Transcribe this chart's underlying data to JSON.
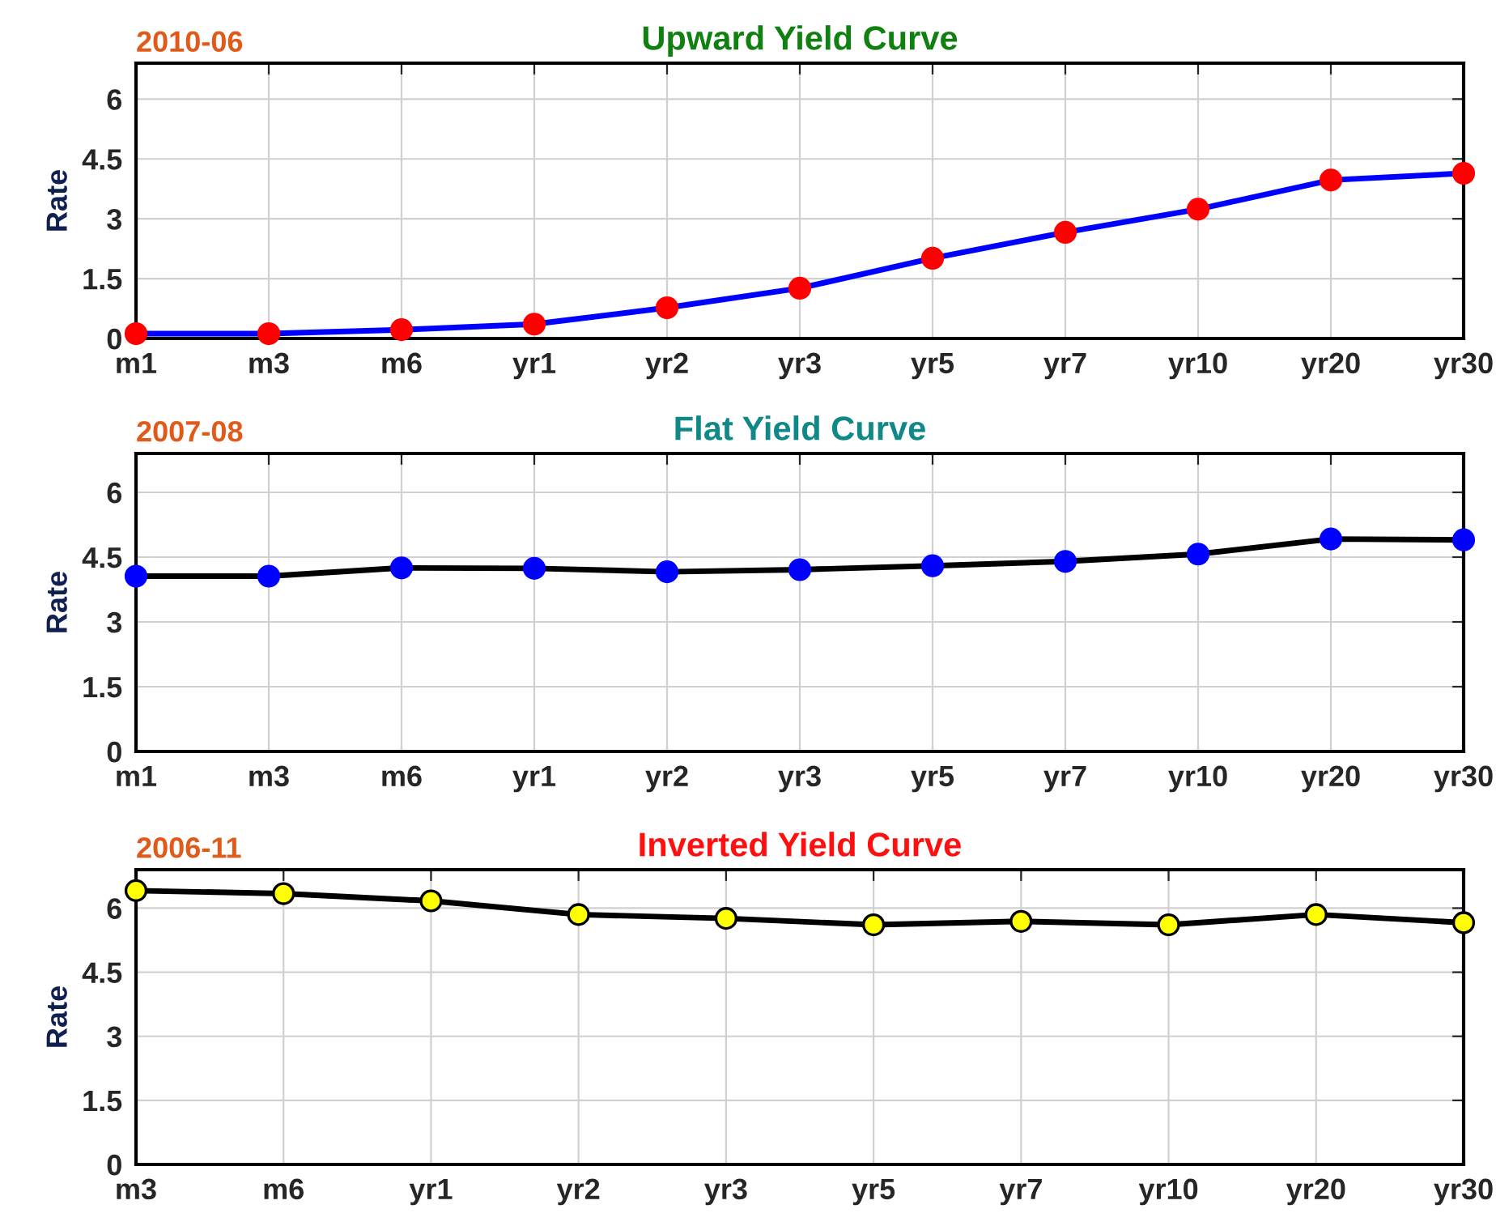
{
  "chart_data": [
    {
      "type": "line",
      "title": "Upward Yield Curve",
      "ylabel": "Rate",
      "annotations": [
        "2010-06"
      ],
      "categories": [
        "m1",
        "m3",
        "m6",
        "yr1",
        "yr2",
        "yr3",
        "yr5",
        "yr7",
        "yr10",
        "yr20",
        "yr30"
      ],
      "series": [
        {
          "color": "#0000ff",
          "colors": [
            "#ff0000",
            "#ff0000",
            "#ff0000",
            "#ff0000",
            "#ff0000",
            "#ff0000",
            "#ff0000",
            "#ff0000",
            "#ff0000",
            "#ff0000",
            "#ff0000"
          ],
          "values": [
            0.12,
            0.12,
            0.22,
            0.36,
            0.77,
            1.26,
            2.01,
            2.66,
            3.24,
            3.97,
            4.14
          ]
        }
      ],
      "ylim": [
        0,
        6.9
      ],
      "yticks": [
        0,
        1.5,
        3,
        4.5,
        6
      ],
      "grid": true,
      "marker": "circle",
      "line_style": "solid"
    },
    {
      "type": "line",
      "title": "Flat Yield Curve",
      "ylabel": "Rate",
      "annotations": [
        "2007-08"
      ],
      "categories": [
        "m1",
        "m3",
        "m6",
        "yr1",
        "yr2",
        "yr3",
        "yr5",
        "yr7",
        "yr10",
        "yr20",
        "yr30"
      ],
      "series": [
        {
          "color": "#000000",
          "colors": [
            "#0000ff",
            "#0000ff",
            "#0000ff",
            "#0000ff",
            "#0000ff",
            "#0000ff",
            "#0000ff",
            "#0000ff",
            "#0000ff",
            "#0000ff",
            "#0000ff"
          ],
          "values": [
            4.06,
            4.06,
            4.25,
            4.24,
            4.16,
            4.21,
            4.3,
            4.4,
            4.57,
            4.92,
            4.9
          ]
        }
      ],
      "ylim": [
        0,
        6.9
      ],
      "yticks": [
        0,
        1.5,
        3,
        4.5,
        6
      ],
      "grid": true,
      "marker": "circle",
      "line_style": "solid"
    },
    {
      "type": "line",
      "title": "Inverted Yield Curve",
      "ylabel": "Rate",
      "annotations": [
        "2006-11"
      ],
      "categories": [
        "m3",
        "m6",
        "yr1",
        "yr2",
        "yr3",
        "yr5",
        "yr7",
        "yr10",
        "yr20",
        "yr30"
      ],
      "series": [
        {
          "color": "#000000",
          "colors": [
            "#ffff00",
            "#ffff00",
            "#ffff00",
            "#ffff00",
            "#ffff00",
            "#ffff00",
            "#ffff00",
            "#ffff00",
            "#ffff00",
            "#ffff00"
          ],
          "values": [
            6.41,
            6.34,
            6.17,
            5.85,
            5.76,
            5.61,
            5.69,
            5.61,
            5.85,
            5.66
          ]
        }
      ],
      "ylim": [
        0,
        6.9
      ],
      "yticks": [
        0,
        1.5,
        3,
        4.5,
        6
      ],
      "grid": true,
      "marker": "circle",
      "line_style": "solid"
    }
  ]
}
